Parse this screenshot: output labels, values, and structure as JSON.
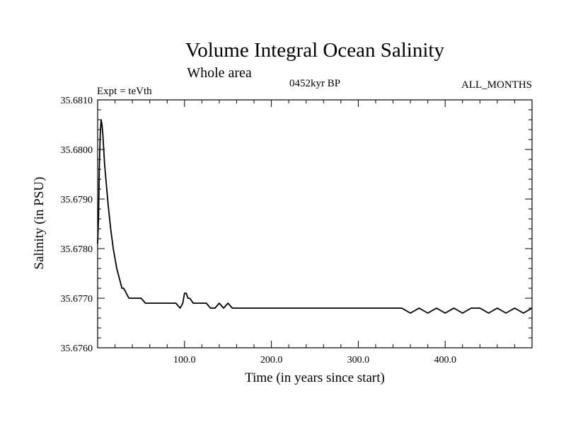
{
  "chart_data": {
    "type": "line",
    "title": "Volume Integral Ocean Salinity",
    "subtitle": "Whole area",
    "annotations": {
      "left": "Expt = teVth",
      "center": "0452kyr BP",
      "right": "ALL_MONTHS"
    },
    "xlabel": "Time (in years since start)",
    "ylabel": "Salinity (in PSU)",
    "xlim": [
      0,
      500
    ],
    "ylim": [
      35.676,
      35.681
    ],
    "xticks": [
      100,
      200,
      300,
      400
    ],
    "xtick_labels": [
      "100.0",
      "200.0",
      "300.0",
      "400.0"
    ],
    "yticks": [
      35.676,
      35.677,
      35.678,
      35.679,
      35.68,
      35.681
    ],
    "ytick_labels": [
      "35.6760",
      "35.6770",
      "35.6780",
      "35.6790",
      "35.6800",
      "35.6810"
    ],
    "grid": false,
    "line_color": "#000000",
    "series": [
      {
        "name": "",
        "x": [
          0,
          1,
          2,
          3,
          4,
          5,
          6,
          7,
          8,
          10,
          12,
          15,
          18,
          20,
          22,
          25,
          28,
          30,
          33,
          36,
          40,
          45,
          50,
          55,
          60,
          65,
          70,
          75,
          80,
          85,
          90,
          95,
          98,
          100,
          102,
          104,
          106,
          110,
          115,
          120,
          125,
          130,
          135,
          140,
          145,
          150,
          155,
          160,
          170,
          180,
          190,
          200,
          210,
          220,
          230,
          240,
          250,
          260,
          270,
          280,
          290,
          300,
          310,
          320,
          330,
          340,
          350,
          360,
          370,
          380,
          390,
          400,
          410,
          420,
          430,
          440,
          450,
          460,
          470,
          480,
          490,
          500
        ],
        "y": [
          35.6781,
          35.6786,
          35.6797,
          35.6803,
          35.6806,
          35.6805,
          35.6803,
          35.68,
          35.6797,
          35.6793,
          35.6789,
          35.6784,
          35.678,
          35.6778,
          35.6776,
          35.6774,
          35.6772,
          35.6772,
          35.6771,
          35.677,
          35.677,
          35.677,
          35.677,
          35.6769,
          35.6769,
          35.6769,
          35.6769,
          35.6769,
          35.6769,
          35.6769,
          35.6769,
          35.6768,
          35.6769,
          35.6771,
          35.6771,
          35.677,
          35.677,
          35.6769,
          35.6769,
          35.6769,
          35.6769,
          35.6768,
          35.6768,
          35.6769,
          35.6768,
          35.6769,
          35.6768,
          35.6768,
          35.6768,
          35.6768,
          35.6768,
          35.6768,
          35.6768,
          35.6768,
          35.6768,
          35.6768,
          35.6768,
          35.6768,
          35.6768,
          35.6768,
          35.6768,
          35.6768,
          35.6768,
          35.6768,
          35.6768,
          35.6768,
          35.6768,
          35.6767,
          35.6768,
          35.6767,
          35.6768,
          35.6767,
          35.6768,
          35.6767,
          35.6768,
          35.6768,
          35.6767,
          35.6768,
          35.6767,
          35.6768,
          35.6767,
          35.6768
        ]
      }
    ]
  }
}
